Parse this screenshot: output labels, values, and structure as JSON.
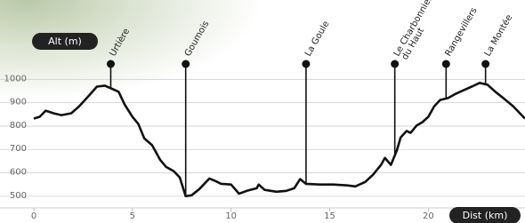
{
  "chart_data": {
    "type": "line",
    "ylabel": "Alt (m)",
    "xlabel": "Dist (km)",
    "xlim": [
      0,
      24.9
    ],
    "ylim": [
      450,
      1100
    ],
    "xticks": [
      0,
      5,
      10,
      15,
      20
    ],
    "yticks": [
      500,
      600,
      700,
      800,
      900,
      1000
    ],
    "grid": true,
    "color": "#111111",
    "x": [
      0,
      0.3,
      0.6,
      1.0,
      1.4,
      1.9,
      2.3,
      2.8,
      3.2,
      3.6,
      3.9,
      4.3,
      4.6,
      5.0,
      5.3,
      5.6,
      6.0,
      6.4,
      6.7,
      7.1,
      7.4,
      7.7,
      8.0,
      8.4,
      8.9,
      9.2,
      9.5,
      10.0,
      10.4,
      10.8,
      11.3,
      11.4,
      11.7,
      12.3,
      12.8,
      13.2,
      13.5,
      13.8,
      14.5,
      15.2,
      15.9,
      16.3,
      16.8,
      17.2,
      17.6,
      17.8,
      18.1,
      18.4,
      18.6,
      18.9,
      19.1,
      19.4,
      19.7,
      20.0,
      20.3,
      20.6,
      21.0,
      21.4,
      21.8,
      22.2,
      22.6,
      23.0,
      23.4,
      23.8,
      24.3,
      24.9
    ],
    "values": [
      832,
      840,
      866,
      855,
      847,
      855,
      885,
      931,
      969,
      973,
      962,
      947,
      893,
      840,
      809,
      748,
      718,
      656,
      626,
      607,
      580,
      500,
      504,
      531,
      576,
      565,
      553,
      550,
      511,
      523,
      534,
      550,
      527,
      519,
      523,
      534,
      573,
      553,
      550,
      550,
      546,
      542,
      561,
      592,
      634,
      664,
      634,
      695,
      752,
      779,
      771,
      802,
      817,
      840,
      885,
      912,
      920,
      939,
      954,
      969,
      985,
      977,
      947,
      920,
      885,
      832
    ],
    "waypoints": [
      {
        "lines": [
          "Urtière"
        ],
        "x": 3.9
      },
      {
        "lines": [
          "Goumois"
        ],
        "x": 7.7
      },
      {
        "lines": [
          "La Goule"
        ],
        "x": 13.8
      },
      {
        "lines": [
          "Le Charbonnier",
          "du Haut"
        ],
        "x": 18.3
      },
      {
        "lines": [
          "Rangevillers"
        ],
        "x": 20.9
      },
      {
        "lines": [
          "La Montée"
        ],
        "x": 22.9
      }
    ]
  }
}
